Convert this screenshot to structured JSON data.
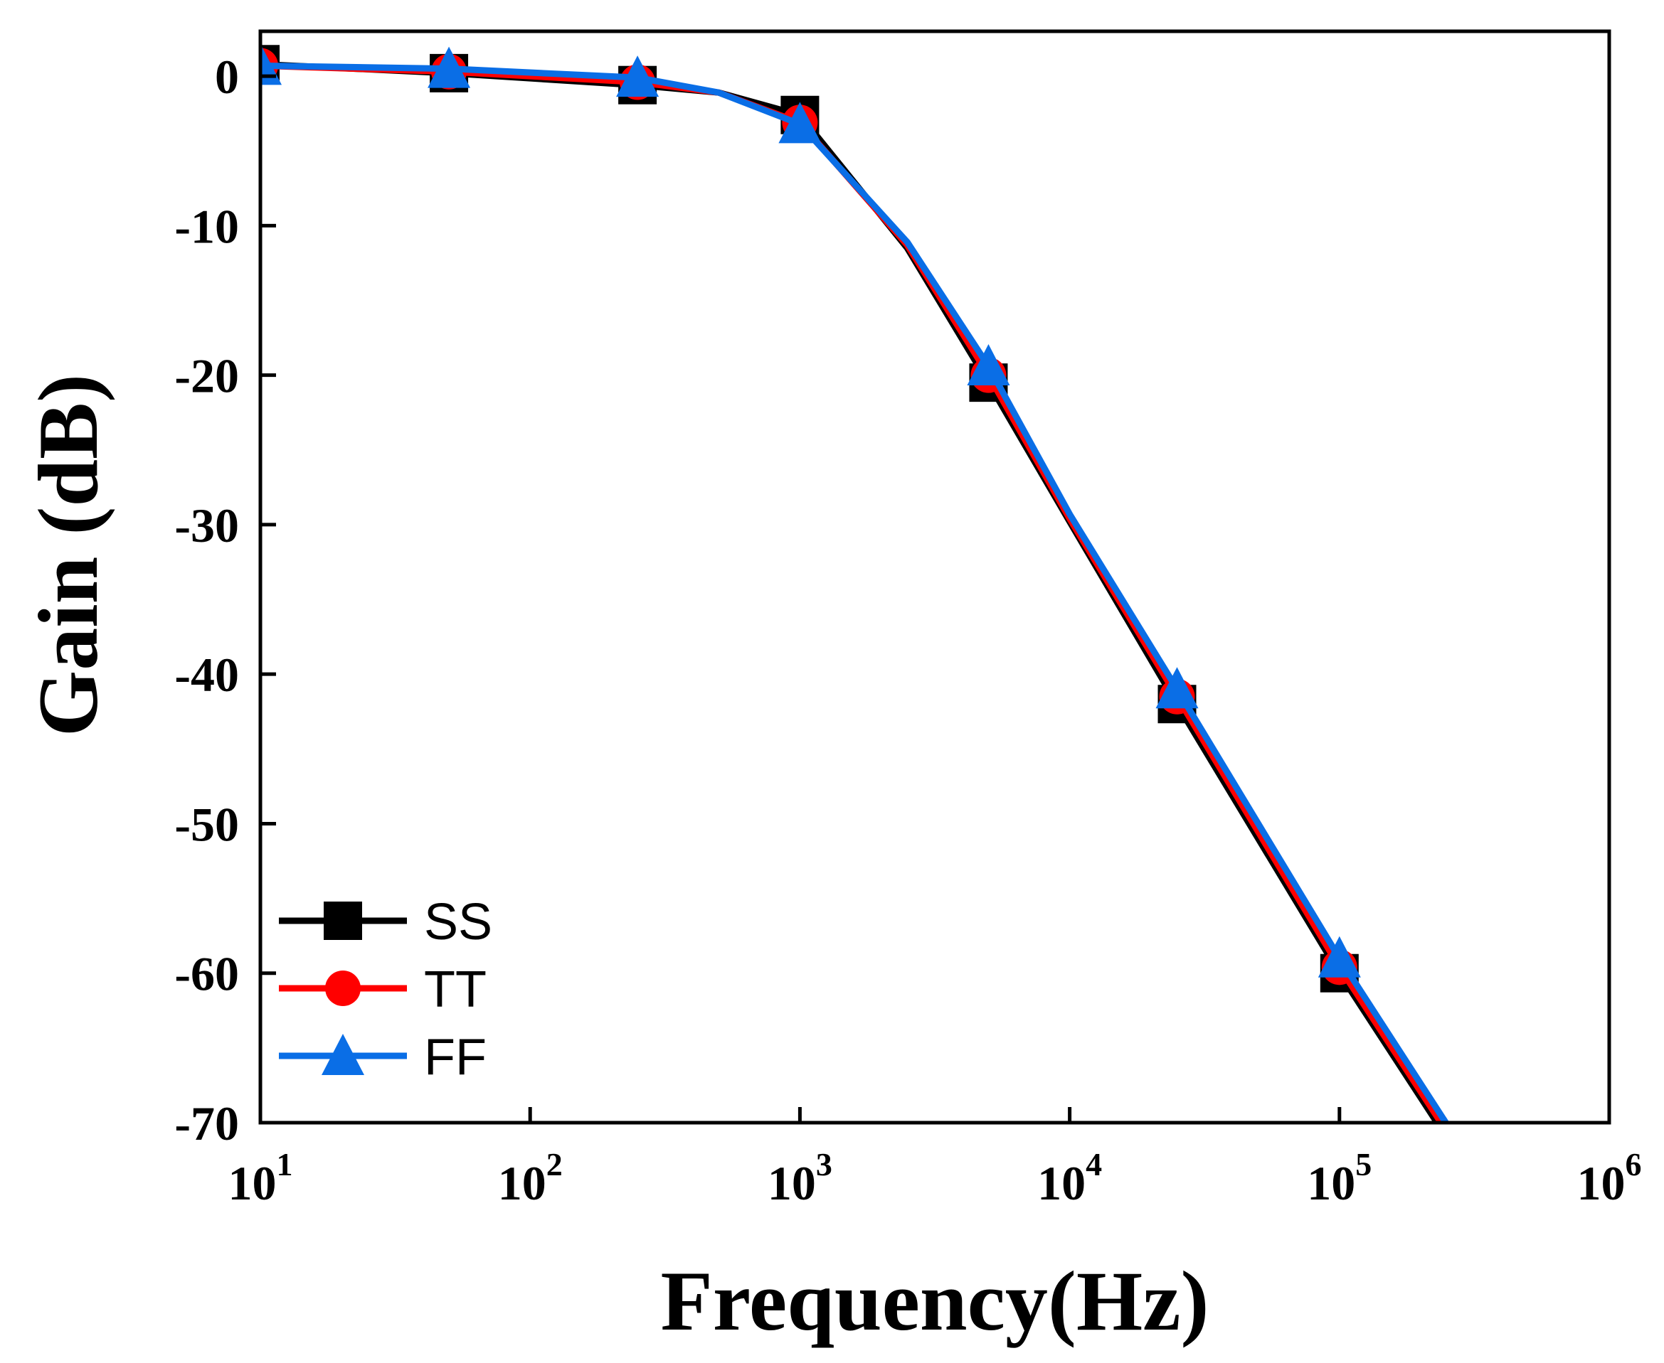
{
  "chart_data": {
    "type": "line",
    "title": "",
    "xlabel": "Frequency(Hz)",
    "ylabel": "Gain (dB)",
    "x_scale": "log",
    "xlim": [
      10,
      1000000
    ],
    "ylim": [
      -70,
      3
    ],
    "x_ticks": [
      {
        "base": "10",
        "exp": "1"
      },
      {
        "base": "10",
        "exp": "2"
      },
      {
        "base": "10",
        "exp": "3"
      },
      {
        "base": "10",
        "exp": "4"
      },
      {
        "base": "10",
        "exp": "5"
      },
      {
        "base": "10",
        "exp": "6"
      }
    ],
    "y_ticks": [
      "0",
      "-10",
      "-20",
      "-30",
      "-40",
      "-50",
      "-60",
      "-70"
    ],
    "legend_position": "bottom-left",
    "grid": false,
    "series": [
      {
        "name": "SS",
        "color": "#000000",
        "marker": "square",
        "x": [
          10,
          50,
          250,
          500,
          1000,
          2500,
          5000,
          10000,
          25000,
          100000,
          250000
        ],
        "y": [
          0.8,
          0.2,
          -0.6,
          -1.1,
          -2.6,
          -11.5,
          -20.5,
          -29.8,
          -42.0,
          -60.0,
          -71.0
        ],
        "marker_x": [
          10,
          50,
          250,
          1000,
          5000,
          25000,
          100000
        ],
        "marker_y": [
          0.8,
          0.2,
          -0.6,
          -2.6,
          -20.5,
          -42.0,
          -60.0
        ]
      },
      {
        "name": "TT",
        "color": "#ff0000",
        "marker": "circle",
        "x": [
          10,
          50,
          250,
          500,
          1000,
          2500,
          5000,
          10000,
          25000,
          100000,
          250000
        ],
        "y": [
          0.7,
          0.3,
          -0.4,
          -1.1,
          -3.1,
          -11.3,
          -20.0,
          -29.6,
          -41.5,
          -59.6,
          -70.6
        ],
        "marker_x": [
          10,
          50,
          250,
          1000,
          5000,
          25000,
          100000
        ],
        "marker_y": [
          0.7,
          0.3,
          -0.4,
          -3.1,
          -20.0,
          -41.5,
          -59.6
        ]
      },
      {
        "name": "FF",
        "color": "#0a6ee6",
        "marker": "triangle",
        "x": [
          10,
          50,
          250,
          500,
          1000,
          2500,
          5000,
          10000,
          25000,
          100000,
          250000
        ],
        "y": [
          0.7,
          0.5,
          -0.1,
          -1.1,
          -3.2,
          -11.1,
          -19.4,
          -29.3,
          -41.0,
          -59.0,
          -70.1
        ],
        "marker_x": [
          10,
          50,
          250,
          1000,
          5000,
          25000,
          100000
        ],
        "marker_y": [
          0.7,
          0.5,
          -0.1,
          -3.2,
          -19.4,
          -41.0,
          -59.0
        ]
      }
    ]
  }
}
